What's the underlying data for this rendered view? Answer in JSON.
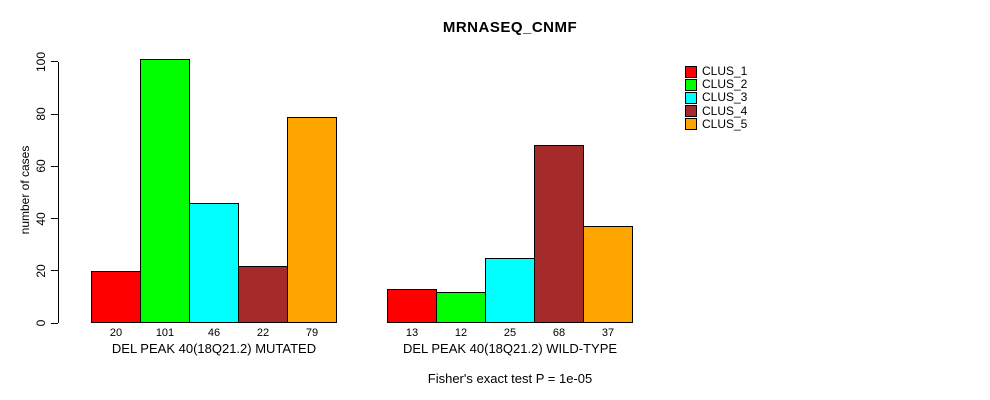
{
  "chart_data": {
    "type": "bar",
    "title": "MRNASEQ_CNMF",
    "ylabel": "number of cases",
    "xlabel": "",
    "annotation": "Fisher's exact test P = 1e-05",
    "y_ticks": [
      0,
      20,
      40,
      60,
      80,
      100
    ],
    "ylim": [
      0,
      101
    ],
    "grid": false,
    "legend_position": "right",
    "bar_value_labels_shown": true,
    "categories": [
      "DEL PEAK 40(18Q21.2) MUTATED",
      "DEL PEAK 40(18Q21.2) WILD-TYPE"
    ],
    "groups": [
      {
        "label": "DEL PEAK 40(18Q21.2) MUTATED",
        "values": [
          20,
          101,
          46,
          22,
          79
        ]
      },
      {
        "label": "DEL PEAK 40(18Q21.2) WILD-TYPE",
        "values": [
          13,
          12,
          25,
          68,
          37
        ]
      }
    ],
    "series": [
      {
        "name": "CLUS_1",
        "color": "#FF0000"
      },
      {
        "name": "CLUS_2",
        "color": "#00FF00"
      },
      {
        "name": "CLUS_3",
        "color": "#00FFFF"
      },
      {
        "name": "CLUS_4",
        "color": "#A52A2A"
      },
      {
        "name": "CLUS_5",
        "color": "#FFA500"
      }
    ],
    "colors": {
      "axis": "#000000",
      "text": "#000000",
      "background": "#FFFFFF"
    }
  }
}
